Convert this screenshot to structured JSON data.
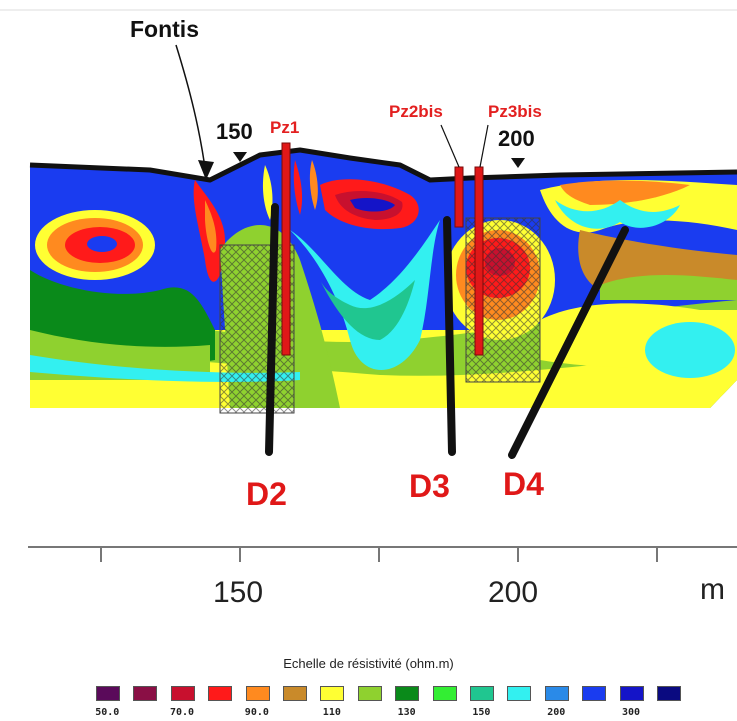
{
  "annotations": {
    "fontis": "Fontis",
    "marker_150": "150",
    "marker_200": "200"
  },
  "piezometers": {
    "pz1": "Pz1",
    "pz2bis": "Pz2bis",
    "pz3bis": "Pz3bis"
  },
  "drill_lines": {
    "d2": "D2",
    "d3": "D3",
    "d4": "D4"
  },
  "axis": {
    "tick_150": "150",
    "tick_200": "200",
    "unit": "m"
  },
  "legend": {
    "title": "Echelle de résistivité (ohm.m)",
    "labels": [
      "50.0",
      "70.0",
      "90.0",
      "110",
      "130",
      "150",
      "200",
      "300"
    ],
    "colors": [
      "#5a0a5a",
      "#8a0f45",
      "#c8102e",
      "#ff1a1a",
      "#ff8a1f",
      "#c98a2a",
      "#ffff33",
      "#8fd12f",
      "#0a8a1a",
      "#33ee33",
      "#20c690",
      "#33f0f0",
      "#2a8ae8",
      "#1a3cf0",
      "#1414c8",
      "#0a0a80"
    ]
  },
  "palette": {
    "accent_red": "#e01818",
    "line_black": "#111111"
  }
}
